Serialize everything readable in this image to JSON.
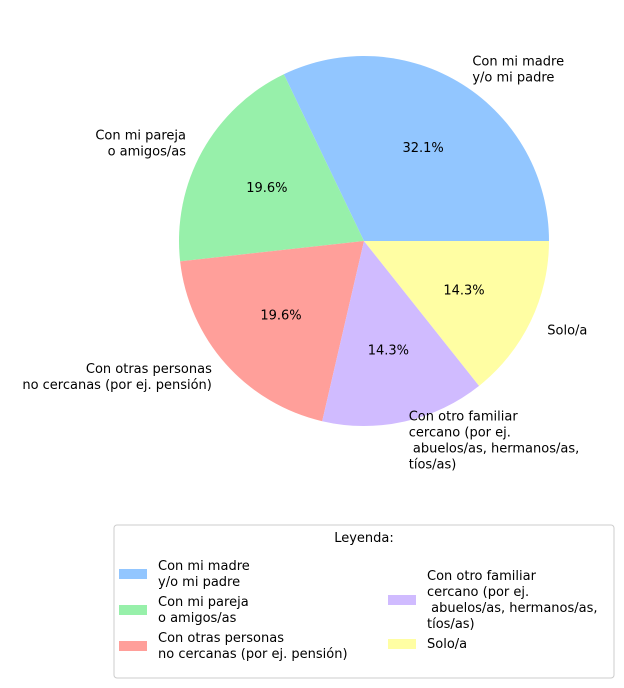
{
  "chart_data": {
    "type": "pie",
    "title": "",
    "start_angle_deg": 0,
    "direction": "counterclockwise",
    "slices": [
      {
        "label": "Con mi madre\ny/o mi padre",
        "value": 32.1,
        "pct_label": "32.1%",
        "color": "#92c6ff"
      },
      {
        "label": "Con mi pareja\no amigos/as",
        "value": 19.6,
        "pct_label": "19.6%",
        "color": "#97f0aa"
      },
      {
        "label": "Con otras personas\nno cercanas (por ej. pensión)",
        "value": 19.6,
        "pct_label": "19.6%",
        "color": "#ff9f9a"
      },
      {
        "label": "Con otro familiar\ncercano (por ej.\n abuelos/as, hermanos/as,\ntíos/as)",
        "value": 14.3,
        "pct_label": "14.3%",
        "color": "#d0bbff"
      },
      {
        "label": "Solo/a",
        "value": 14.3,
        "pct_label": "14.3%",
        "color": "#fffea3"
      }
    ],
    "legend": {
      "title": "Leyenda:",
      "placement": "bottom",
      "columns": 2
    }
  }
}
